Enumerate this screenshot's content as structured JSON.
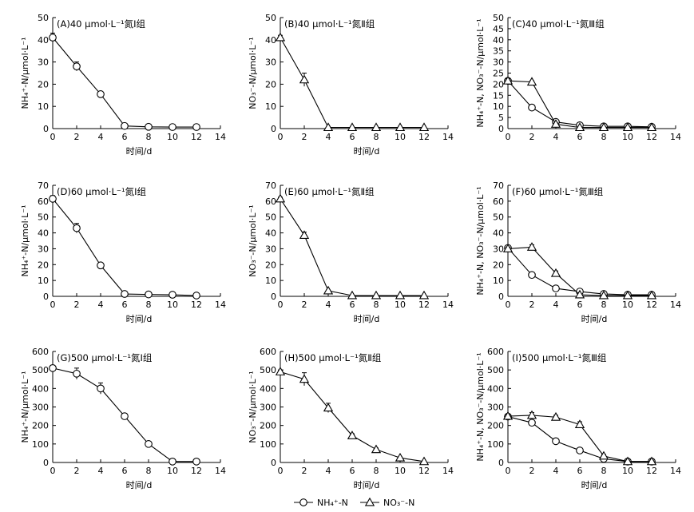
{
  "chart_data": [
    {
      "id": "A",
      "type": "line",
      "title": "(A)40 μmol·L⁻¹氮Ⅰ组",
      "xlabel": "时间/d",
      "ylabel": "NH₄⁺-N/μmol·L⁻¹",
      "xlim": [
        0,
        14
      ],
      "ylim": [
        0,
        50
      ],
      "xticks": [
        0,
        2,
        4,
        6,
        8,
        10,
        12,
        14
      ],
      "yticks": [
        0,
        10,
        20,
        30,
        40,
        50
      ],
      "series": [
        {
          "marker": "circle",
          "x": [
            0,
            2,
            4,
            6,
            8,
            10,
            12
          ],
          "values": [
            41,
            28,
            15.5,
            1.2,
            0.8,
            0.7,
            0.7
          ],
          "errors": [
            2,
            2,
            0.5,
            0.5,
            0.2,
            0.2,
            0.2
          ]
        }
      ]
    },
    {
      "id": "B",
      "type": "line",
      "title": "(B)40 μmol·L⁻¹氮Ⅱ组",
      "xlabel": "时间/d",
      "ylabel": "NO₃⁻-N/μmol·L⁻¹",
      "xlim": [
        0,
        14
      ],
      "ylim": [
        0,
        50
      ],
      "xticks": [
        0,
        2,
        4,
        6,
        8,
        10,
        12,
        14
      ],
      "yticks": [
        0,
        10,
        20,
        30,
        40,
        50
      ],
      "series": [
        {
          "marker": "triangle",
          "x": [
            0,
            2,
            4,
            6,
            8,
            10,
            12
          ],
          "values": [
            41,
            22,
            0.5,
            0.5,
            0.5,
            0.5,
            0.5
          ],
          "errors": [
            1,
            3,
            0.2,
            0.2,
            0.2,
            0.2,
            0.2
          ]
        }
      ]
    },
    {
      "id": "C",
      "type": "line",
      "title": "(C)40 μmol·L⁻¹氮Ⅲ组",
      "xlabel": "",
      "ylabel": "NH₄⁺-N, NO₃⁻-N/μmol·L⁻¹",
      "xlim": [
        0,
        14
      ],
      "ylim": [
        0,
        50
      ],
      "xticks": [
        0,
        2,
        4,
        6,
        8,
        10,
        12,
        14
      ],
      "yticks": [
        0,
        5,
        10,
        15,
        20,
        25,
        30,
        35,
        40,
        45,
        50
      ],
      "series": [
        {
          "name": "NH₄⁺-N",
          "marker": "circle",
          "x": [
            0,
            2,
            4,
            6,
            8,
            10,
            12
          ],
          "values": [
            21.5,
            9.5,
            3,
            1.5,
            1,
            1,
            0.8
          ],
          "errors": [
            1,
            0.5,
            0.5,
            0.3,
            0.2,
            0.2,
            0.2
          ]
        },
        {
          "name": "NO₃⁻-N",
          "marker": "triangle",
          "x": [
            0,
            2,
            4,
            6,
            8,
            10,
            12
          ],
          "values": [
            21.5,
            21,
            2,
            0.5,
            0.5,
            0.5,
            0.5
          ],
          "errors": [
            1,
            0.5,
            0.5,
            0.2,
            0.2,
            0.2,
            0.2
          ]
        }
      ]
    },
    {
      "id": "D",
      "type": "line",
      "title": "(D)60 μmol·L⁻¹氮Ⅰ组",
      "xlabel": "时间/d",
      "ylabel": "NH₄⁺-N/μmol·L⁻¹",
      "xlim": [
        0,
        14
      ],
      "ylim": [
        0,
        70
      ],
      "xticks": [
        0,
        2,
        4,
        6,
        8,
        10,
        12,
        14
      ],
      "yticks": [
        0,
        10,
        20,
        30,
        40,
        50,
        60,
        70
      ],
      "series": [
        {
          "marker": "circle",
          "x": [
            0,
            2,
            4,
            6,
            8,
            10,
            12
          ],
          "values": [
            61.5,
            43,
            19.5,
            1.5,
            1.2,
            1,
            0.5
          ],
          "errors": [
            2,
            3,
            1,
            0.5,
            0.3,
            0.3,
            0.2
          ]
        }
      ]
    },
    {
      "id": "E",
      "type": "line",
      "title": "(E)60 μmol·L⁻¹氮Ⅱ组",
      "xlabel": "时间/d",
      "ylabel": "NO₃⁻-N/μmol·L⁻¹",
      "xlim": [
        0,
        14
      ],
      "ylim": [
        0,
        70
      ],
      "xticks": [
        0,
        2,
        4,
        6,
        8,
        10,
        12,
        14
      ],
      "yticks": [
        0,
        10,
        20,
        30,
        40,
        50,
        60,
        70
      ],
      "series": [
        {
          "marker": "triangle",
          "x": [
            0,
            2,
            4,
            6,
            8,
            10,
            12
          ],
          "values": [
            61.5,
            38.5,
            3.5,
            0.5,
            0.5,
            0.5,
            0.5
          ],
          "errors": [
            1,
            2,
            0.5,
            0.2,
            0.2,
            0.2,
            0.2
          ]
        }
      ]
    },
    {
      "id": "F",
      "type": "line",
      "title": "(F)60 μmol·L⁻¹氮Ⅲ组",
      "xlabel": "时间/d",
      "ylabel": "NH₄⁺-N, NO₃⁻-N/μmol·L⁻¹",
      "xlim": [
        0,
        14
      ],
      "ylim": [
        0,
        70
      ],
      "xticks": [
        0,
        2,
        4,
        6,
        8,
        10,
        12,
        14
      ],
      "yticks": [
        0,
        10,
        20,
        30,
        40,
        50,
        60,
        70
      ],
      "series": [
        {
          "name": "NH₄⁺-N",
          "marker": "circle",
          "x": [
            0,
            2,
            4,
            6,
            8,
            10,
            12
          ],
          "values": [
            30.5,
            13.5,
            5,
            3,
            1.5,
            1,
            1
          ],
          "errors": [
            1,
            1,
            0.5,
            0.5,
            0.3,
            0.3,
            0.3
          ]
        },
        {
          "name": "NO₃⁻-N",
          "marker": "triangle",
          "x": [
            0,
            2,
            4,
            6,
            8,
            10,
            12
          ],
          "values": [
            30,
            31,
            14.5,
            1,
            0.5,
            0.5,
            0.5
          ],
          "errors": [
            1,
            1.5,
            1.5,
            0.3,
            0.2,
            0.2,
            0.2
          ]
        }
      ]
    },
    {
      "id": "G",
      "type": "line",
      "title": "(G)500 μmol·L⁻¹氮Ⅰ组",
      "xlabel": "时间/d",
      "ylabel": "NH₄⁺-N/μmol·L⁻¹",
      "xlim": [
        0,
        14
      ],
      "ylim": [
        0,
        600
      ],
      "xticks": [
        0,
        2,
        4,
        6,
        8,
        10,
        12,
        14
      ],
      "yticks": [
        0,
        100,
        200,
        300,
        400,
        500,
        600
      ],
      "series": [
        {
          "marker": "circle",
          "x": [
            0,
            2,
            4,
            6,
            8,
            10,
            12
          ],
          "values": [
            510,
            480,
            400,
            250,
            100,
            5,
            5
          ],
          "errors": [
            15,
            30,
            30,
            15,
            10,
            3,
            3
          ]
        }
      ]
    },
    {
      "id": "H",
      "type": "line",
      "title": "(H)500 μmol·L⁻¹氮Ⅱ组",
      "xlabel": "时间/d",
      "ylabel": "NO₃⁻-N/μmol·L⁻¹",
      "xlim": [
        0,
        14
      ],
      "ylim": [
        0,
        600
      ],
      "xticks": [
        0,
        2,
        4,
        6,
        8,
        10,
        12,
        14
      ],
      "yticks": [
        0,
        100,
        200,
        300,
        400,
        500,
        600
      ],
      "series": [
        {
          "marker": "triangle",
          "x": [
            0,
            2,
            4,
            6,
            8,
            10,
            12
          ],
          "values": [
            490,
            450,
            295,
            145,
            70,
            25,
            5
          ],
          "errors": [
            10,
            35,
            25,
            10,
            8,
            5,
            3
          ]
        }
      ]
    },
    {
      "id": "I",
      "type": "line",
      "title": "(I)500 μmol·L⁻¹氮Ⅲ组",
      "xlabel": "时间/d",
      "ylabel": "NH₄⁺-N, NO₃⁻-N/μmol·L⁻¹",
      "xlim": [
        0,
        14
      ],
      "ylim": [
        0,
        600
      ],
      "xticks": [
        0,
        2,
        4,
        6,
        8,
        10,
        12,
        14
      ],
      "yticks": [
        0,
        100,
        200,
        300,
        400,
        500,
        600
      ],
      "series": [
        {
          "name": "NH₄⁺-N",
          "marker": "circle",
          "x": [
            0,
            2,
            4,
            6,
            8,
            10,
            12
          ],
          "values": [
            248,
            215,
            115,
            65,
            20,
            5,
            5
          ],
          "errors": [
            10,
            10,
            8,
            8,
            5,
            3,
            3
          ]
        },
        {
          "name": "NO₃⁻-N",
          "marker": "triangle",
          "x": [
            0,
            2,
            4,
            6,
            8,
            10,
            12
          ],
          "values": [
            250,
            255,
            245,
            205,
            35,
            5,
            5
          ],
          "errors": [
            10,
            15,
            10,
            15,
            8,
            3,
            3
          ]
        }
      ]
    }
  ],
  "legend": {
    "items": [
      {
        "label": "NH₄⁺-N",
        "marker": "circle"
      },
      {
        "label": "NO₃⁻-N",
        "marker": "triangle"
      }
    ],
    "position": "bottom-center"
  }
}
